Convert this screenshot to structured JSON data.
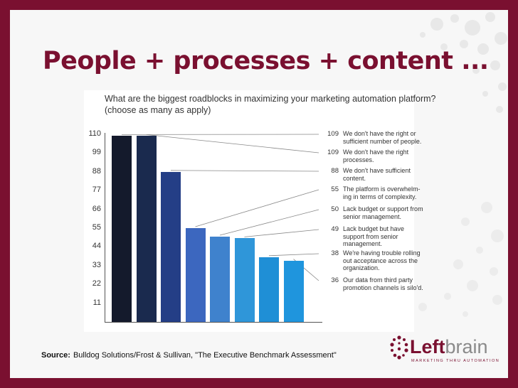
{
  "slide": {
    "title": "People + processes + content ..."
  },
  "source": {
    "label": "Source:",
    "text": "Bulldog Solutions/Frost & Sullivan, \"The Executive Benchmark Assessment\""
  },
  "logo": {
    "part1": "Left",
    "part2": "brain",
    "tagline": "MARKETING THRU AUTOMATION",
    "primary_color": "#7a1030",
    "secondary_color": "#8a8a8a"
  },
  "chart_data": {
    "type": "bar",
    "title_lines": [
      "What are the biggest roadblocks in maximizing your marketing automation platform?",
      "(choose as many as apply)"
    ],
    "y_ticks": [
      "110",
      "99",
      "88",
      "77",
      "66",
      "55",
      "44",
      "33",
      "22",
      "11"
    ],
    "ylim": [
      0,
      115
    ],
    "values": [
      109,
      109,
      88,
      55,
      50,
      49,
      38,
      36
    ],
    "value_labels": [
      "109",
      "109",
      "88",
      "55",
      "50",
      "49",
      "38",
      "36"
    ],
    "descriptions": [
      "We don't have the right or sufficient number of people.",
      "We don't have the right processes.",
      "We don't have sufficient content.",
      "The platform is overwhelm-ing in terms of complexity.",
      "Lack budget or support from senior management.",
      "Lack budget but have support from senior management.",
      "We're having trouble rolling out acceptance across the organization.",
      "Our data from third party promotion channels is silo'd."
    ],
    "colors": [
      "#141a2c",
      "#1a2a4e",
      "#243e86",
      "#3c67bf",
      "#3f82cd",
      "#2f96d9",
      "#1f8fd6",
      "#1f95dd"
    ]
  }
}
